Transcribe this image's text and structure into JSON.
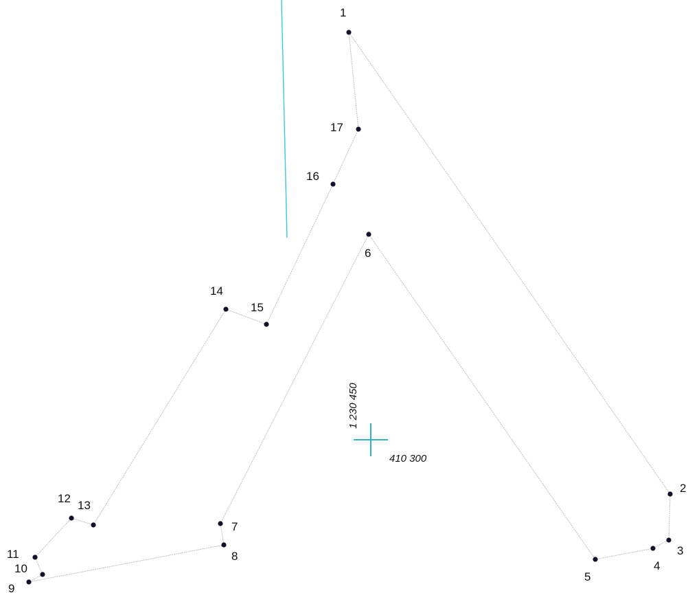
{
  "points": [
    {
      "label": "1"
    },
    {
      "label": "2"
    },
    {
      "label": "3"
    },
    {
      "label": "4"
    },
    {
      "label": "5"
    },
    {
      "label": "6"
    },
    {
      "label": "7"
    },
    {
      "label": "8"
    },
    {
      "label": "9"
    },
    {
      "label": "10"
    },
    {
      "label": "11"
    },
    {
      "label": "12"
    },
    {
      "label": "13"
    },
    {
      "label": "14"
    },
    {
      "label": "15"
    },
    {
      "label": "16"
    },
    {
      "label": "17"
    }
  ],
  "reference_marker": {
    "northing": "1 230 450",
    "easting": "410 300"
  },
  "colors": {
    "boundary": "#bdbdbd",
    "point": "#12122a",
    "reference_line": "#3ec6dc",
    "reference_cross": "#1aa7bd"
  }
}
